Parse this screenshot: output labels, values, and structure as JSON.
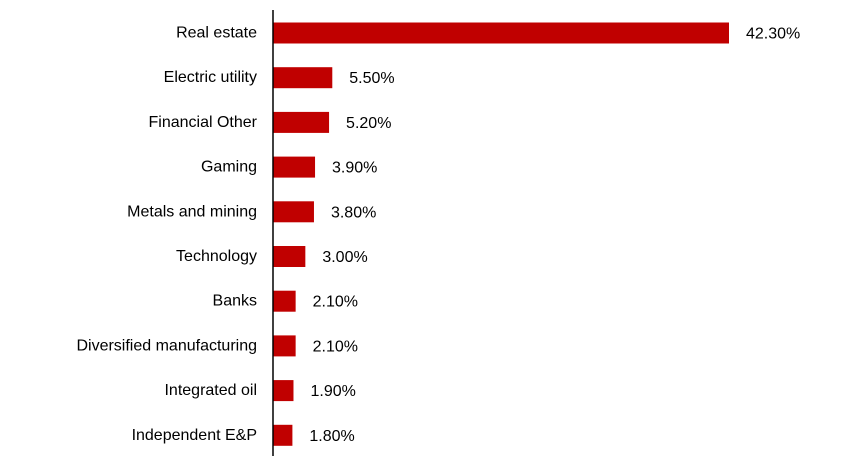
{
  "chart_data": {
    "type": "bar",
    "orientation": "horizontal",
    "title": "",
    "xlabel": "",
    "ylabel": "",
    "categories": [
      "Real estate",
      "Electric utility",
      "Financial Other",
      "Gaming",
      "Metals and mining",
      "Technology",
      "Banks",
      "Diversified manufacturing",
      "Integrated oil",
      "Independent E&P"
    ],
    "values": [
      42.3,
      5.5,
      5.2,
      3.9,
      3.8,
      3.0,
      2.1,
      2.1,
      1.9,
      1.8
    ],
    "value_labels": [
      "42.30%",
      "5.50%",
      "5.20%",
      "3.90%",
      "3.80%",
      "3.00%",
      "2.10%",
      "2.10%",
      "1.90%",
      "1.80%"
    ],
    "xlim": [
      0,
      42.3
    ],
    "grid": false,
    "legend": "none",
    "bar_color": "#C00000"
  }
}
